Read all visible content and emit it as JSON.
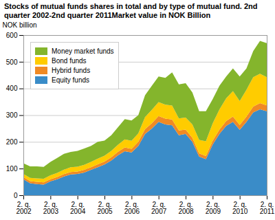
{
  "chart_data": {
    "type": "area",
    "stacked": true,
    "title": "Stocks of mutual funds shares in total and by type of mutual fund. 2nd quarter 2002-2nd quarter 2011Market value in NOK Billion",
    "y_label": "NOK billion",
    "categories": [
      "2. q.\n2002",
      null,
      null,
      null,
      "2. q.\n2003",
      null,
      null,
      null,
      "2. q.\n2004",
      null,
      null,
      null,
      "2. q.\n2005",
      null,
      null,
      null,
      "2. q.\n2006",
      null,
      null,
      null,
      "2. q.\n2007",
      null,
      null,
      null,
      "2. q.\n2008",
      null,
      null,
      null,
      "2. q.\n2009",
      null,
      null,
      null,
      "2. q.\n2010",
      null,
      null,
      null,
      "2. q.\n2011"
    ],
    "series": [
      {
        "name": "Equity funds",
        "color": "#3a8cc8",
        "values": [
          60,
          45,
          42,
          40,
          52,
          60,
          70,
          78,
          80,
          85,
          95,
          105,
          115,
          130,
          150,
          165,
          160,
          185,
          230,
          250,
          275,
          265,
          262,
          225,
          230,
          200,
          145,
          135,
          190,
          230,
          260,
          275,
          245,
          275,
          310,
          322,
          315
        ]
      },
      {
        "name": "Hybrid funds",
        "color": "#f08a24",
        "values": [
          8,
          8,
          8,
          8,
          8,
          8,
          9,
          9,
          9,
          10,
          10,
          11,
          11,
          12,
          13,
          14,
          14,
          15,
          18,
          20,
          22,
          22,
          22,
          18,
          16,
          15,
          12,
          12,
          14,
          16,
          18,
          20,
          18,
          20,
          22,
          23,
          22
        ]
      },
      {
        "name": "Bond funds",
        "color": "#ffcc00",
        "values": [
          12,
          12,
          13,
          14,
          15,
          16,
          17,
          18,
          18,
          19,
          20,
          21,
          22,
          24,
          26,
          30,
          30,
          32,
          45,
          50,
          52,
          52,
          52,
          45,
          45,
          50,
          50,
          55,
          65,
          75,
          85,
          95,
          90,
          100,
          110,
          110,
          105
        ]
      },
      {
        "name": "Money market funds",
        "color": "#84b52c",
        "values": [
          40,
          43,
          45,
          44,
          50,
          56,
          59,
          57,
          59,
          61,
          60,
          63,
          57,
          59,
          66,
          76,
          76,
          68,
          82,
          90,
          96,
          101,
          124,
          127,
          129,
          120,
          108,
          113,
          91,
          89,
          82,
          85,
          92,
          80,
          98,
          123,
          128
        ]
      }
    ],
    "ylim": [
      0,
      600
    ],
    "yticks": [
      0,
      100,
      200,
      300,
      400,
      500,
      600
    ],
    "grid": true,
    "legend": "top-left"
  }
}
